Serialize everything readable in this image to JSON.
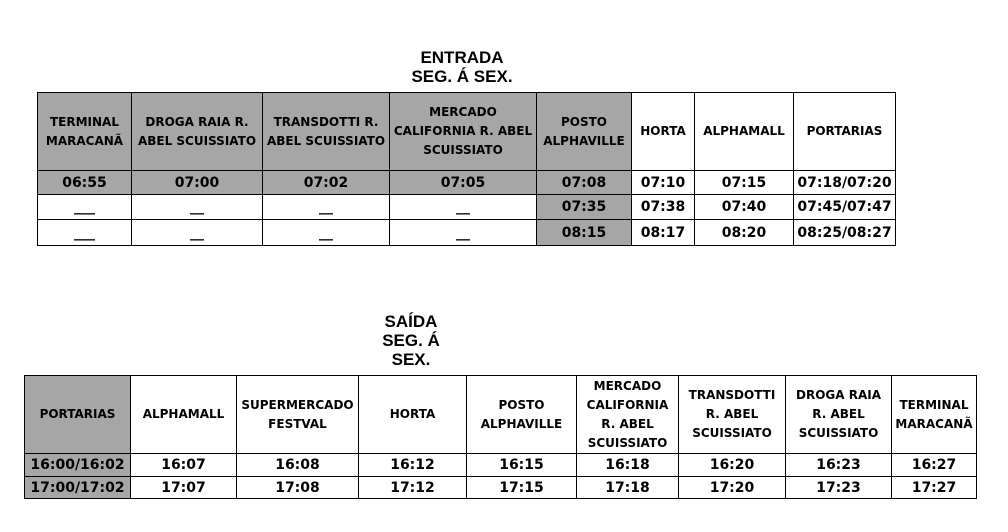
{
  "entrada": {
    "title": "ENTRADA",
    "subtitle": "SEG. Á SEX.",
    "headers": [
      "TERMINAL MARACANÃ",
      "DROGA RAIA R. ABEL SCUISSIATO",
      "TRANSDOTTI R. ABEL SCUISSIATO",
      "MERCADO CALIFORNIA R. ABEL SCUISSIATO",
      "POSTO ALPHAVILLE",
      "HORTA",
      "ALPHAMALL",
      "PORTARIAS"
    ],
    "rows": [
      [
        "06:55",
        "07:00",
        "07:02",
        "07:05",
        "07:08",
        "07:10",
        "07:15",
        "07:18/07:20"
      ],
      [
        "___",
        "__",
        "__",
        "__",
        "07:35",
        "07:38",
        "07:40",
        "07:45/07:47"
      ],
      [
        "___",
        "__",
        "__",
        "__",
        "08:15",
        "08:17",
        "08:20",
        "08:25/08:27"
      ]
    ]
  },
  "saida": {
    "title": "SAÍDA",
    "subtitle1": "SEG. Á",
    "subtitle2": "SEX.",
    "headers": [
      "PORTARIAS",
      "ALPHAMALL",
      "SUPERMERCADO FESTVAL",
      "HORTA",
      "POSTO ALPHAVILLE",
      "MERCADO CALIFORNIA R. ABEL SCUISSIATO",
      "TRANSDOTTI R. ABEL SCUISSIATO",
      "DROGA RAIA R. ABEL SCUISSIATO",
      "TERMINAL MARACANÃ"
    ],
    "rows": [
      [
        "16:00/16:02",
        "16:07",
        "16:08",
        "16:12",
        "16:15",
        "16:18",
        "16:20",
        "16:23",
        "16:27"
      ],
      [
        "17:00/17:02",
        "17:07",
        "17:08",
        "17:12",
        "17:15",
        "17:18",
        "17:20",
        "17:23",
        "17:27"
      ]
    ]
  },
  "colors": {
    "shade": "#a6a6a6"
  }
}
